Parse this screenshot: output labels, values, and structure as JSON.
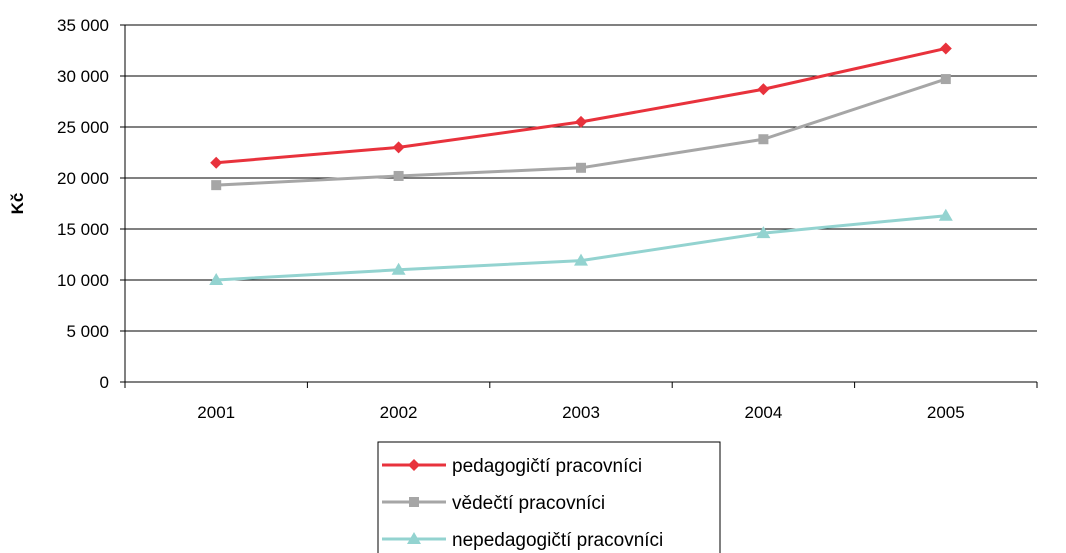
{
  "chart_data": {
    "type": "line",
    "title": "",
    "xlabel": "",
    "ylabel": "Kč",
    "categories": [
      "2001",
      "2002",
      "2003",
      "2004",
      "2005"
    ],
    "ylim": [
      0,
      35000
    ],
    "yticks": [
      0,
      5000,
      10000,
      15000,
      20000,
      25000,
      30000,
      35000
    ],
    "ytick_labels": [
      "0",
      "5 000",
      "10 000",
      "15 000",
      "20 000",
      "25 000",
      "30 000",
      "35 000"
    ],
    "grid": true,
    "legend_position": "bottom",
    "series": [
      {
        "name": "pedagogičtí pracovníci",
        "values": [
          21500,
          23000,
          25500,
          28700,
          32700
        ],
        "color": "#e8323c",
        "marker": "diamond"
      },
      {
        "name": "vědečtí pracovníci",
        "values": [
          19300,
          20200,
          21000,
          23800,
          29700
        ],
        "color": "#a6a6a6",
        "marker": "square"
      },
      {
        "name": "nepedagogičtí pracovníci",
        "values": [
          10000,
          11000,
          11900,
          14600,
          16300
        ],
        "color": "#93d3d0",
        "marker": "triangle"
      }
    ]
  }
}
